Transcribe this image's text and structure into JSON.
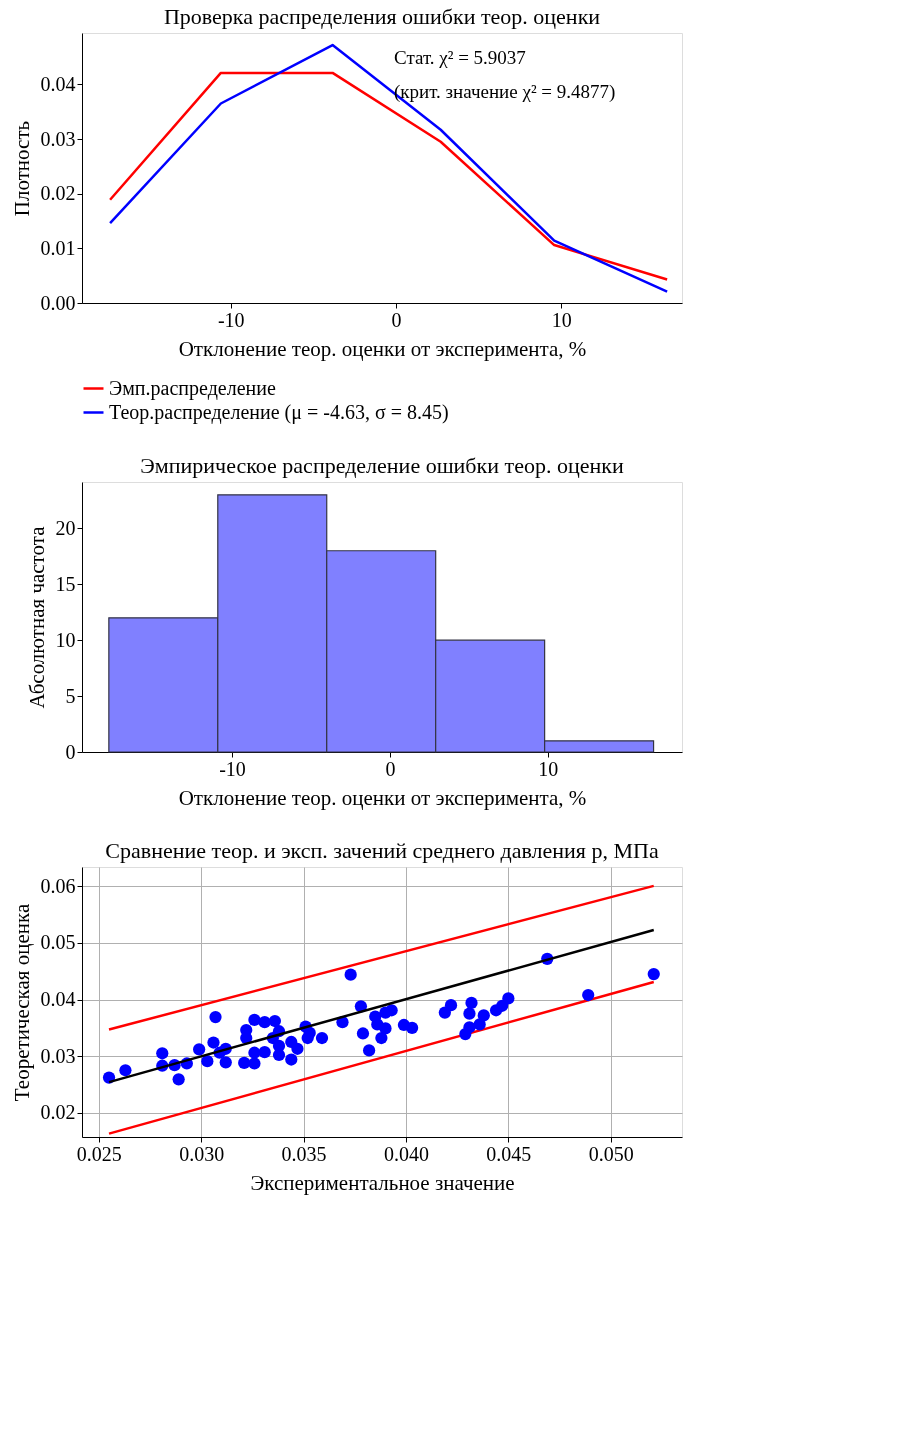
{
  "chart_data": [
    {
      "type": "line",
      "title": "Проверка распределения ошибки теор. оценки",
      "xlabel": "Отклонение теор. оценки от эксперимента, %",
      "ylabel": "Плотность",
      "x": [
        -17.3,
        -10.6,
        -3.84,
        2.7,
        9.57,
        16.4
      ],
      "series": [
        {
          "name": "Эмп.распределение",
          "color": "#ff0000",
          "values": [
            0.0189,
            0.0421,
            0.0421,
            0.0295,
            0.0106,
            0.0043
          ]
        },
        {
          "name": "Теор.распределение (μ = -4.63, σ = 8.45)",
          "color": "#0000ff",
          "values": [
            0.0146,
            0.0365,
            0.0472,
            0.0317,
            0.0114,
            0.0021
          ]
        }
      ],
      "xlim": [
        -19.0,
        17.3
      ],
      "ylim": [
        0,
        0.0494
      ],
      "xticks": [
        -10,
        0,
        10
      ],
      "yticks": [
        {
          "value": 0,
          "label": "0.00"
        },
        {
          "value": 0.01,
          "label": "0.01"
        },
        {
          "value": 0.02,
          "label": "0.02"
        },
        {
          "value": 0.03,
          "label": "0.03"
        },
        {
          "value": 0.04,
          "label": "0.04"
        }
      ],
      "annotations": [
        "Стат. χ² = 5.9037",
        "(крит. значение χ² = 9.4877)"
      ],
      "legend": "bottom",
      "grid": false
    },
    {
      "type": "histogram",
      "title": "Эмпирическое распределение ошибки теор. оценки",
      "xlabel": "Отклонение теор. оценки от эксперимента, %",
      "ylabel": "Абсолютная частота",
      "bins": [
        -17.8,
        -10.9,
        -4.0,
        2.9,
        9.8,
        16.7
      ],
      "values": [
        12,
        23,
        18,
        10,
        1
      ],
      "color": "#8080ff",
      "xlim": [
        -19.5,
        18.5
      ],
      "ylim": [
        0,
        24.15
      ],
      "xticks": [
        -10,
        0,
        10
      ],
      "yticks": [
        0,
        5,
        10,
        15,
        20
      ],
      "grid": false
    },
    {
      "type": "scatter",
      "title": "Сравнение теор. и эксп. зачений среднего давления p, МПа",
      "xlabel": "Экспериментальное значение",
      "ylabel": "Теоретическая оценка",
      "series": [
        {
          "type": "line",
          "color": "#ff0000",
          "x": [
            0.0255,
            0.0521
          ],
          "values": [
            0.0347,
            0.0601
          ]
        },
        {
          "type": "line",
          "color": "#ff0000",
          "x": [
            0.0255,
            0.0521
          ],
          "values": [
            0.0163,
            0.0431
          ]
        },
        {
          "type": "scatter",
          "color": "#0000ff",
          "marker": "circle",
          "x": [
            0.0255,
            0.0263,
            0.0281,
            0.0281,
            0.0289,
            0.0287,
            0.0293,
            0.0299,
            0.0303,
            0.0306,
            0.0307,
            0.0309,
            0.0312,
            0.0312,
            0.0321,
            0.0322,
            0.0322,
            0.0326,
            0.0326,
            0.0326,
            0.0331,
            0.0331,
            0.0336,
            0.0335,
            0.0338,
            0.0338,
            0.0338,
            0.0344,
            0.0344,
            0.0347,
            0.0351,
            0.0353,
            0.0352,
            0.0359,
            0.0373,
            0.0369,
            0.0378,
            0.0379,
            0.0382,
            0.0385,
            0.0386,
            0.039,
            0.0388,
            0.0393,
            0.039,
            0.0399,
            0.0403,
            0.0419,
            0.0422,
            0.0431,
            0.0432,
            0.0429,
            0.0431,
            0.0436,
            0.0438,
            0.0444,
            0.0447,
            0.045,
            0.0469,
            0.0489,
            0.0521
          ],
          "values": [
            0.0262,
            0.0275,
            0.0305,
            0.0283,
            0.0259,
            0.0284,
            0.0287,
            0.0312,
            0.0291,
            0.0324,
            0.0369,
            0.0306,
            0.0313,
            0.0289,
            0.0288,
            0.0346,
            0.0332,
            0.0306,
            0.0287,
            0.0364,
            0.0307,
            0.036,
            0.0362,
            0.0332,
            0.0344,
            0.0318,
            0.0302,
            0.0294,
            0.0325,
            0.0313,
            0.0352,
            0.0341,
            0.0332,
            0.0332,
            0.0444,
            0.036,
            0.0388,
            0.034,
            0.031,
            0.037,
            0.0356,
            0.0349,
            0.0332,
            0.0381,
            0.0377,
            0.0355,
            0.035,
            0.0377,
            0.039,
            0.0375,
            0.0394,
            0.0339,
            0.0351,
            0.0356,
            0.0372,
            0.0381,
            0.0389,
            0.0402,
            0.0472,
            0.0408,
            0.0445
          ]
        },
        {
          "type": "line",
          "color": "#000000",
          "x": [
            0.0255,
            0.0521
          ],
          "values": [
            0.0254,
            0.0523
          ]
        }
      ],
      "xlim": [
        0.02418,
        0.05348
      ],
      "ylim": [
        0.0157,
        0.06343
      ],
      "xticks": [
        {
          "value": 0.025,
          "label": "0.025"
        },
        {
          "value": 0.03,
          "label": "0.030"
        },
        {
          "value": 0.035,
          "label": "0.035"
        },
        {
          "value": 0.04,
          "label": "0.040"
        },
        {
          "value": 0.045,
          "label": "0.045"
        },
        {
          "value": 0.05,
          "label": "0.050"
        }
      ],
      "yticks": [
        0.02,
        0.03,
        0.04,
        0.05,
        0.06
      ],
      "grid": true
    }
  ]
}
